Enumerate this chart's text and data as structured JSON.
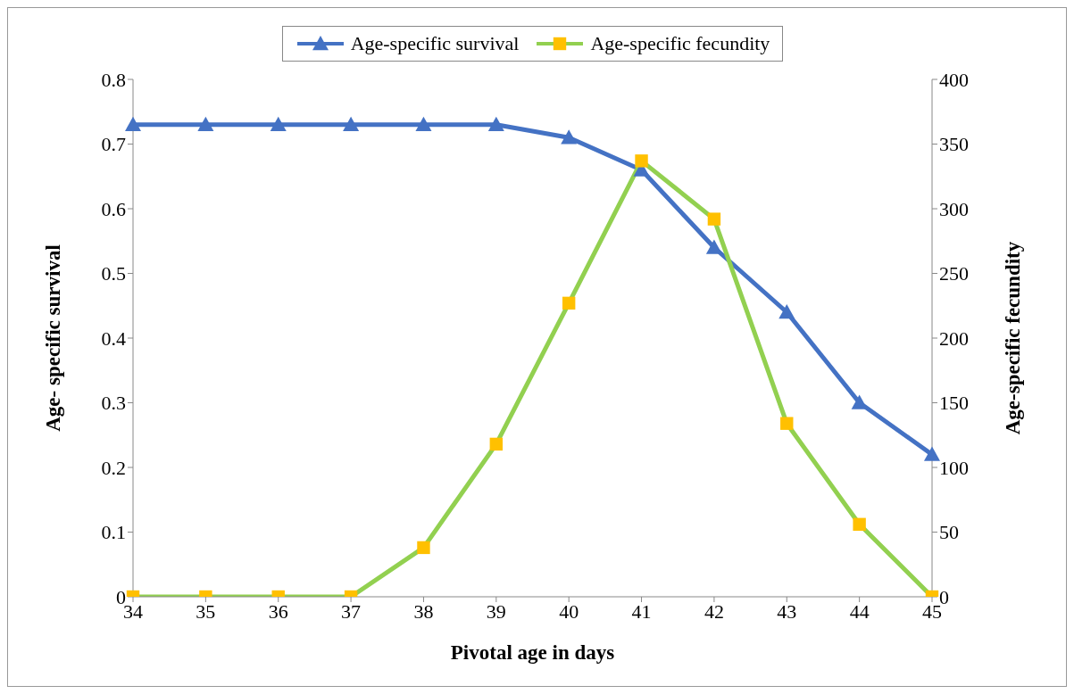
{
  "chart_data": {
    "type": "line",
    "xlabel": "Pivotal age in days",
    "ylabel": "Age- specific survival",
    "y2label": "Age-specific fecundity",
    "categories": [
      "34",
      "35",
      "36",
      "37",
      "38",
      "39",
      "40",
      "41",
      "42",
      "43",
      "44",
      "45"
    ],
    "series": [
      {
        "name": "Age-specific survival",
        "color": "#4472c4",
        "marker": "triangle",
        "values": [
          0.73,
          0.73,
          0.73,
          0.73,
          0.73,
          0.73,
          0.71,
          0.66,
          0.54,
          0.44,
          0.3,
          0.22
        ]
      },
      {
        "name": "Age-specific fecundity",
        "color": "#92d050",
        "colors": [
          "#ffc000",
          "#ffc000",
          "#ffc000",
          "#ffc000",
          "#ffc000",
          "#ffc000",
          "#ffc000",
          "#ffc000",
          "#ffc000",
          "#ffc000",
          "#ffc000",
          "#ffc000"
        ],
        "marker": "square",
        "axis": "y2",
        "values": [
          0,
          0,
          0,
          0,
          38,
          118,
          227,
          337,
          292,
          134,
          56,
          0
        ]
      }
    ],
    "ylim": [
      0,
      0.8
    ],
    "yticks": [
      0,
      0.1,
      0.2,
      0.3,
      0.4,
      0.5,
      0.6,
      0.7,
      0.8
    ],
    "y2lim": [
      0,
      400
    ],
    "y2ticks": [
      0,
      50,
      100,
      150,
      200,
      250,
      300,
      350,
      400
    ],
    "grid": false,
    "legend": "top",
    "line_style": "solid"
  }
}
